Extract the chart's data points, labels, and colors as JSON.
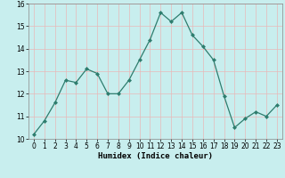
{
  "x": [
    0,
    1,
    2,
    3,
    4,
    5,
    6,
    7,
    8,
    9,
    10,
    11,
    12,
    13,
    14,
    15,
    16,
    17,
    18,
    19,
    20,
    21,
    22,
    23
  ],
  "y": [
    10.2,
    10.8,
    11.6,
    12.6,
    12.5,
    13.1,
    12.9,
    12.0,
    12.0,
    12.6,
    13.5,
    14.4,
    15.6,
    15.2,
    15.6,
    14.6,
    14.1,
    13.5,
    11.9,
    10.5,
    10.9,
    11.2,
    11.0,
    11.5
  ],
  "line_color": "#2e7d6e",
  "marker": "D",
  "marker_size": 2.0,
  "bg_color": "#c8eeee",
  "grid_color": "#e8b8b8",
  "xlabel": "Humidex (Indice chaleur)",
  "ylim": [
    10,
    16
  ],
  "xlim": [
    -0.5,
    23.5
  ],
  "yticks": [
    10,
    11,
    12,
    13,
    14,
    15,
    16
  ],
  "xticks": [
    0,
    1,
    2,
    3,
    4,
    5,
    6,
    7,
    8,
    9,
    10,
    11,
    12,
    13,
    14,
    15,
    16,
    17,
    18,
    19,
    20,
    21,
    22,
    23
  ],
  "xlabel_fontsize": 6.5,
  "tick_fontsize": 5.5
}
